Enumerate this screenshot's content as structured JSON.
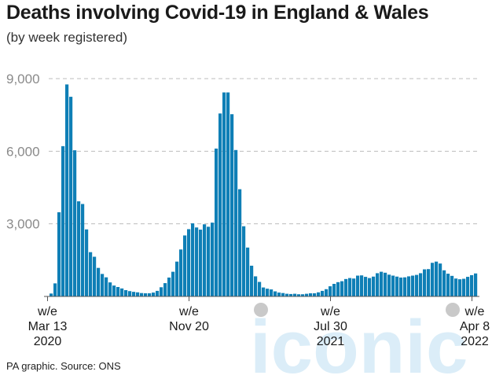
{
  "chart_data": {
    "type": "bar",
    "title": "Deaths involving Covid-19 in England & Wales",
    "subtitle": "(by week registered)",
    "source": "PA graphic. Source: ONS",
    "watermark": "iconic",
    "xlabel": "",
    "ylabel": "",
    "ylim": [
      0,
      9000
    ],
    "yticks": [
      {
        "value": 3000,
        "label": "3,000"
      },
      {
        "value": 6000,
        "label": "6,000"
      },
      {
        "value": 9000,
        "label": "9,000"
      }
    ],
    "grid": true,
    "bar_color": "#0f7fb6",
    "xtick_labels": [
      {
        "index": 0,
        "lines": [
          "w/e",
          "Mar 13",
          "2020"
        ]
      },
      {
        "index": 36,
        "lines": [
          "w/e",
          "Nov 20",
          ""
        ]
      },
      {
        "index": 72,
        "lines": [
          "w/e",
          "Jul 30",
          "2021"
        ]
      },
      {
        "index": 108,
        "lines": [
          "w/e",
          "Apr 8",
          "2022"
        ]
      }
    ],
    "values": [
      5,
      120,
      540,
      3480,
      6210,
      8760,
      8250,
      6040,
      3930,
      3820,
      2770,
      1830,
      1640,
      1180,
      930,
      790,
      580,
      450,
      390,
      330,
      260,
      220,
      190,
      170,
      140,
      130,
      130,
      160,
      230,
      380,
      550,
      780,
      1020,
      1440,
      1940,
      2520,
      2780,
      3020,
      2850,
      2760,
      2980,
      2880,
      3050,
      6110,
      7560,
      8430,
      8430,
      7530,
      6050,
      4430,
      2900,
      2020,
      1270,
      830,
      600,
      370,
      320,
      290,
      210,
      160,
      140,
      110,
      100,
      110,
      90,
      90,
      110,
      130,
      130,
      170,
      230,
      300,
      420,
      520,
      590,
      630,
      720,
      760,
      740,
      860,
      870,
      810,
      760,
      820,
      960,
      1020,
      980,
      900,
      860,
      820,
      780,
      790,
      830,
      860,
      890,
      960,
      1120,
      1130,
      1390,
      1440,
      1360,
      1080,
      940,
      850,
      740,
      710,
      730,
      810,
      880,
      950
    ]
  }
}
